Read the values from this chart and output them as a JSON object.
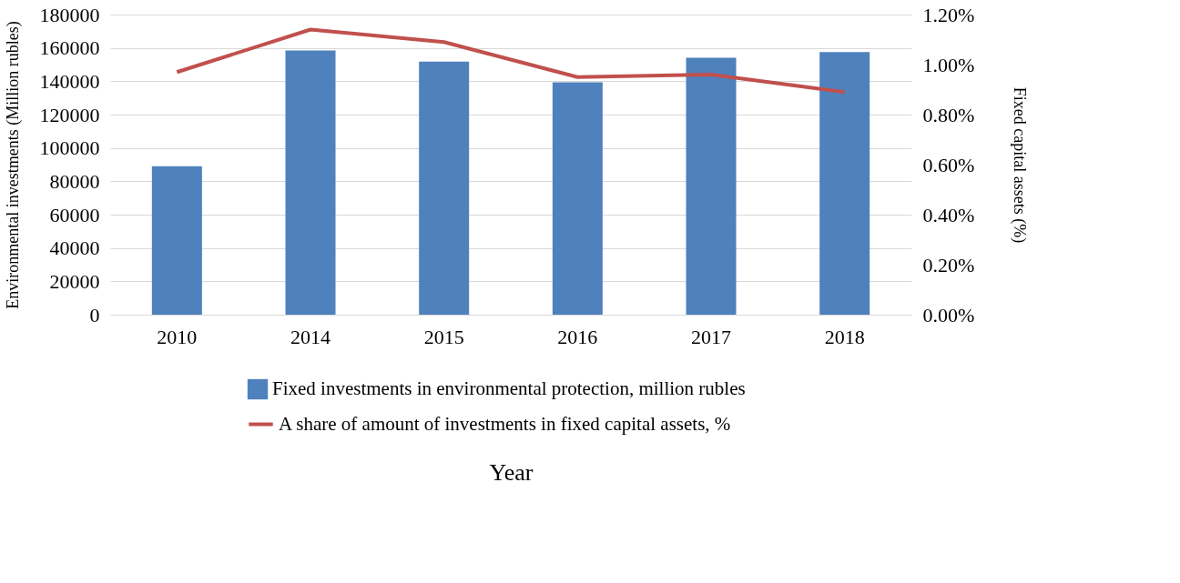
{
  "chart_data": {
    "type": "bar",
    "xlabel": "Year",
    "ylabel": "Environmental investments (Million rubles)",
    "y2label": "Fixed capital assets (%)",
    "categories": [
      "2010",
      "2014",
      "2015",
      "2016",
      "2017",
      "2018"
    ],
    "series": [
      {
        "name": "Fixed investments in environmental protection, million rubles",
        "color": "#4f81bd",
        "values": [
          89000,
          158500,
          151800,
          139300,
          154100,
          157500
        ]
      },
      {
        "name": "A share of amount of investments in fixed capital assets, %",
        "color": "#c0504d",
        "type": "line",
        "axis": "y2",
        "values": [
          0.97,
          1.14,
          1.09,
          0.95,
          0.96,
          0.89
        ]
      }
    ],
    "ylim": [
      0,
      180000
    ],
    "yticks": [
      0,
      20000,
      40000,
      60000,
      80000,
      100000,
      120000,
      140000,
      160000,
      180000
    ],
    "y2lim": [
      0,
      1.2
    ],
    "y2ticks": [
      {
        "value": 0,
        "label": "0.00%"
      },
      {
        "value": 0.2,
        "label": "0.20%"
      },
      {
        "value": 0.4,
        "label": "0.40%"
      },
      {
        "value": 0.6,
        "label": "0.60%"
      },
      {
        "value": 0.8,
        "label": "0.80%"
      },
      {
        "value": 1.0,
        "label": "1.00%"
      },
      {
        "value": 1.2,
        "label": "1.20%"
      }
    ],
    "grid": "y",
    "legend": "bottom",
    "marker": "none",
    "line_style": "solid"
  }
}
